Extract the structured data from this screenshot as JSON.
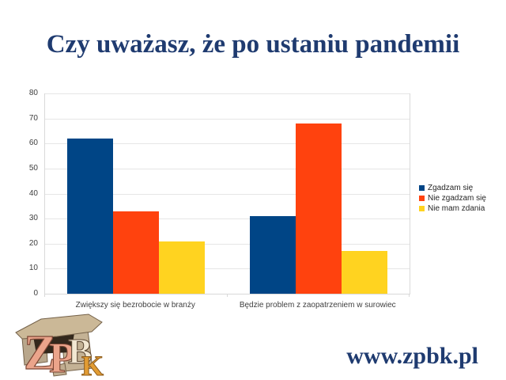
{
  "title": "Czy uważasz, że po ustaniu pandemii",
  "website": "www.zpbk.pl",
  "logo": {
    "letters": [
      "Z",
      "P",
      "B",
      "K"
    ]
  },
  "colors": {
    "title_navy": "#1f3b70",
    "gridline": "#e6e6e6",
    "axis_line": "#d9d9d9",
    "axis_text": "#404040"
  },
  "chart_data": {
    "type": "bar",
    "title": "",
    "xlabel": "",
    "ylabel": "",
    "categories": [
      "Zwiększy się bezrobocie w branży",
      "Będzie problem z zaopatrzeniem w surowiec"
    ],
    "series": [
      {
        "name": "Zgadzam się",
        "color": "#004586",
        "values": [
          62,
          31
        ]
      },
      {
        "name": "Nie zgadzam się",
        "color": "#ff420e",
        "values": [
          33,
          68
        ]
      },
      {
        "name": "Nie mam zdania",
        "color": "#ffd320",
        "values": [
          21,
          17
        ]
      }
    ],
    "ylim": [
      0,
      80
    ],
    "ytick_step": 10,
    "grid": true,
    "legend_position": "right"
  }
}
